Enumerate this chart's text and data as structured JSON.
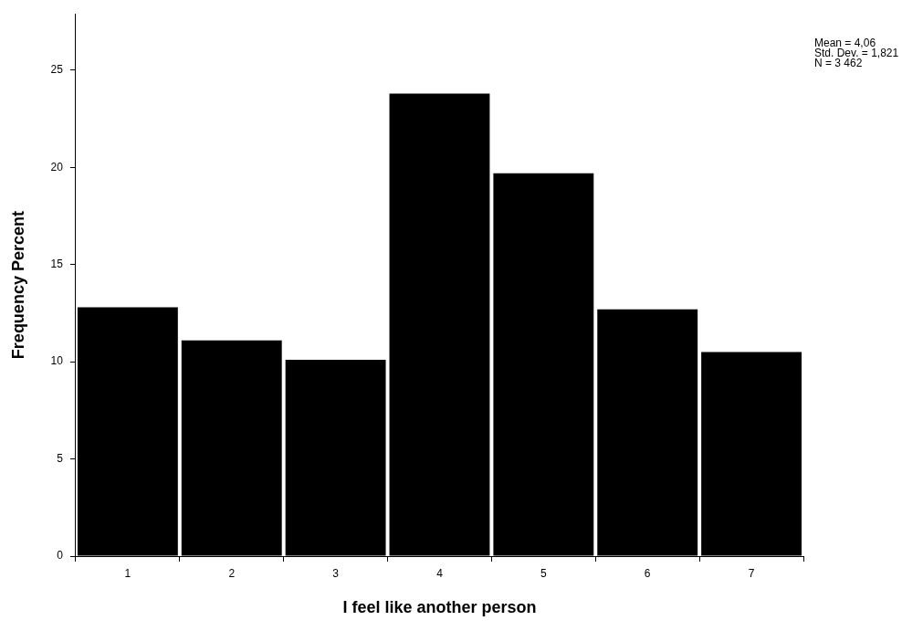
{
  "chart_data": {
    "type": "bar",
    "xlabel": "I feel like another person",
    "ylabel": "Frequency Percent",
    "categories": [
      "1",
      "2",
      "3",
      "4",
      "5",
      "6",
      "7"
    ],
    "values": [
      12.8,
      11.1,
      10.1,
      23.8,
      19.7,
      12.7,
      10.5
    ],
    "color": "#000000",
    "ylim": [
      0,
      27.9
    ],
    "yticks": [
      0,
      5,
      10,
      15,
      20,
      25
    ],
    "grid": false,
    "legend": false,
    "annotations": [
      "Mean = 4,06",
      "Std. Dev. = 1,821",
      "N = 3 462"
    ]
  }
}
